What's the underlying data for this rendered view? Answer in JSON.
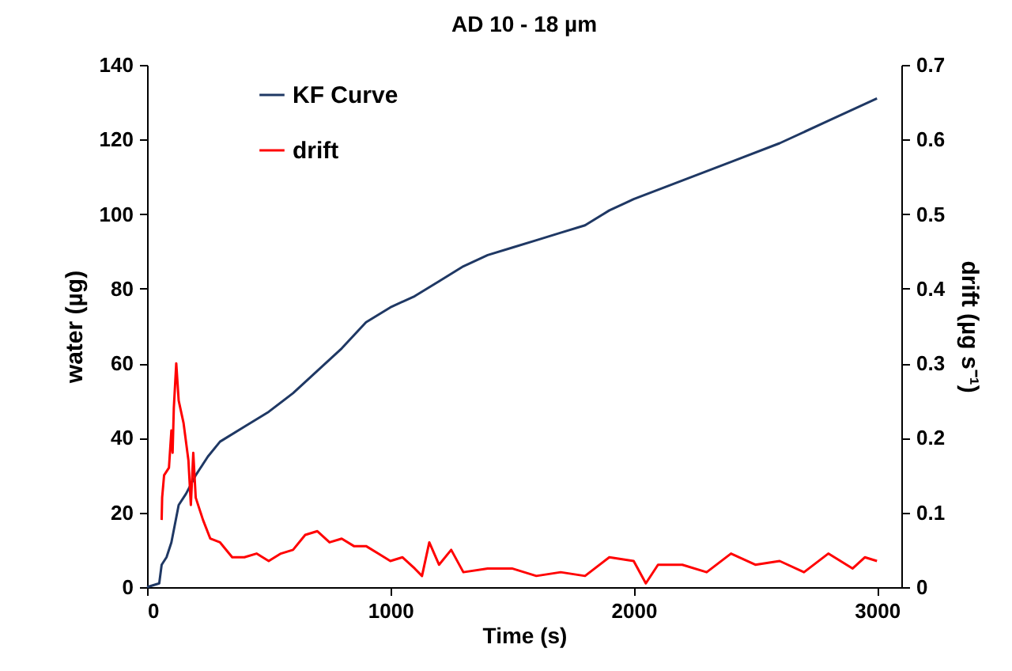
{
  "chart_data": {
    "type": "line",
    "title": "AD  10 - 18 µm",
    "xlabel": "Time (s)",
    "ylabel": "water (µg)",
    "y2label": "drift (µg s⁻¹)",
    "xlim": [
      0,
      3100
    ],
    "xticks": [
      0,
      1000,
      2000,
      3000
    ],
    "ylim": [
      0,
      140
    ],
    "yticks": [
      0,
      20,
      40,
      60,
      80,
      100,
      120,
      140
    ],
    "y2lim": [
      0,
      0.7
    ],
    "y2ticks": [
      0,
      0.1,
      0.2,
      0.3,
      0.4,
      0.5,
      0.6,
      0.7
    ],
    "grid": false,
    "legend": "top left",
    "series": [
      {
        "name": "KF Curve",
        "color": "#1f3864",
        "x": [
          0,
          50,
          60,
          80,
          100,
          130,
          160,
          200,
          250,
          300,
          400,
          500,
          600,
          700,
          800,
          900,
          1000,
          1100,
          1200,
          1300,
          1400,
          1500,
          1600,
          1700,
          1800,
          1900,
          2000,
          2200,
          2400,
          2600,
          2800,
          3000
        ],
        "values": [
          0,
          1,
          6,
          8,
          12,
          22,
          25,
          30,
          35,
          39,
          43,
          47,
          52,
          58,
          64,
          71,
          75,
          78,
          82,
          86,
          89,
          91,
          93,
          95,
          97,
          101,
          104,
          109,
          114,
          119,
          125,
          131
        ]
      },
      {
        "name": "drift",
        "color": "#ff0000",
        "axis": "y2",
        "x": [
          60,
          62,
          70,
          90,
          100,
          105,
          110,
          120,
          130,
          150,
          170,
          180,
          190,
          200,
          230,
          260,
          300,
          350,
          400,
          450,
          500,
          550,
          600,
          650,
          700,
          750,
          800,
          850,
          900,
          950,
          1000,
          1050,
          1100,
          1130,
          1160,
          1200,
          1250,
          1300,
          1400,
          1500,
          1600,
          1700,
          1800,
          1900,
          2000,
          2050,
          2100,
          2200,
          2300,
          2400,
          2500,
          2600,
          2700,
          2800,
          2900,
          2950,
          3000
        ],
        "values": [
          0.09,
          0.12,
          0.15,
          0.16,
          0.21,
          0.18,
          0.24,
          0.3,
          0.25,
          0.22,
          0.17,
          0.11,
          0.18,
          0.12,
          0.09,
          0.065,
          0.06,
          0.04,
          0.04,
          0.045,
          0.035,
          0.045,
          0.05,
          0.07,
          0.075,
          0.06,
          0.065,
          0.055,
          0.055,
          0.045,
          0.035,
          0.04,
          0.025,
          0.015,
          0.06,
          0.03,
          0.05,
          0.02,
          0.025,
          0.025,
          0.015,
          0.02,
          0.015,
          0.04,
          0.035,
          0.005,
          0.03,
          0.03,
          0.02,
          0.045,
          0.03,
          0.035,
          0.02,
          0.045,
          0.025,
          0.04,
          0.035
        ]
      }
    ]
  }
}
